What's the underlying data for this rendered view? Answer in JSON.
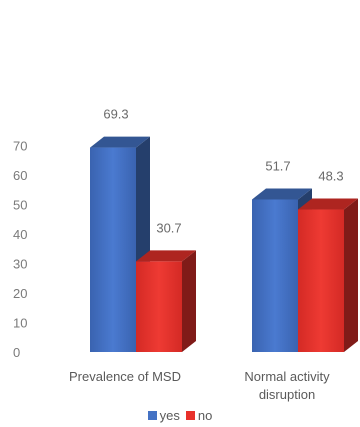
{
  "chart_data": {
    "type": "bar",
    "categories": [
      "Prevalence of MSD",
      "Normal activity disruption"
    ],
    "category_lines": [
      [
        "Prevalence of MSD"
      ],
      [
        "Normal activity",
        "disruption"
      ]
    ],
    "series": [
      {
        "name": "yes",
        "values": [
          69.3,
          51.7
        ],
        "color": "#4472c4"
      },
      {
        "name": "no",
        "values": [
          30.7,
          48.3
        ],
        "color": "#e8312b"
      }
    ],
    "data_labels": [
      [
        "69.3",
        "51.7"
      ],
      [
        "30.7",
        "48.3"
      ]
    ],
    "y_ticks": [
      0,
      10,
      20,
      30,
      40,
      50,
      60,
      70
    ],
    "ylim": [
      0,
      70
    ],
    "grid": false,
    "legend_position": "bottom",
    "style": "3d-bar"
  }
}
